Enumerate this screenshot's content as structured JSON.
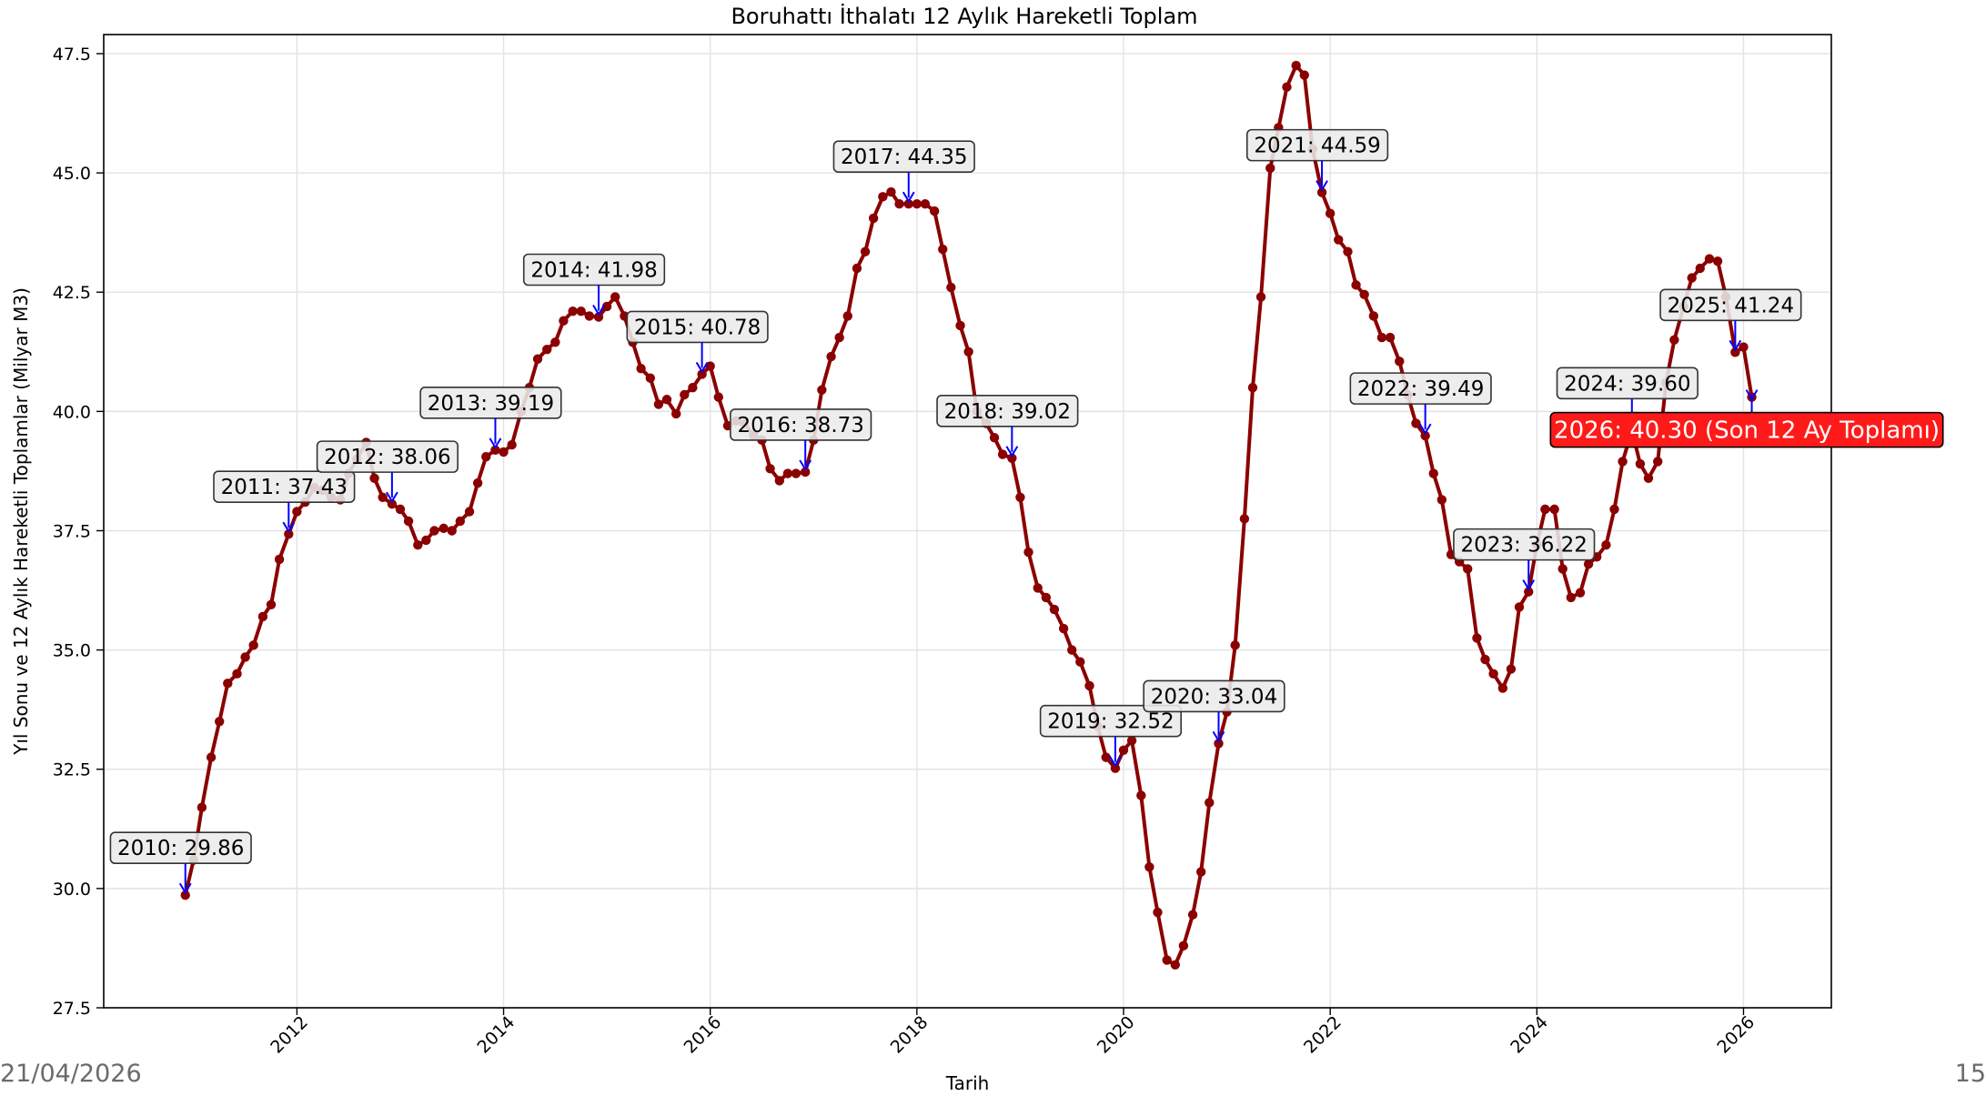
{
  "footer": {
    "date": "21/04/2026",
    "page": "15"
  },
  "chart_data": {
    "type": "line",
    "title": "Boruhattı İthalatı 12 Aylık Hareketli Toplam",
    "xlabel": "Tarih",
    "ylabel": "Yıl Sonu ve 12 Aylık Hareketli Toplamlar (Milyar M3)",
    "xlim": [
      2010.13,
      2026.85
    ],
    "ylim": [
      27.5,
      47.9
    ],
    "grid": true,
    "x_ticks": [
      2012,
      2014,
      2016,
      2018,
      2020,
      2022,
      2024,
      2026
    ],
    "x_tick_labels": [
      "2012",
      "2014",
      "2016",
      "2018",
      "2020",
      "2022",
      "2024",
      "2026"
    ],
    "y_ticks": [
      27.5,
      30.0,
      32.5,
      35.0,
      37.5,
      40.0,
      42.5,
      45.0,
      47.5
    ],
    "y_tick_labels": [
      "27.5",
      "30.0",
      "32.5",
      "35.0",
      "37.5",
      "40.0",
      "42.5",
      "45.0",
      "47.5"
    ],
    "line_color": "#8b0000",
    "arrow_color": "#0000ff",
    "highlight_color": "#ff1a1a",
    "series": [
      {
        "x": [
          2010.92,
          2011.0,
          2011.08,
          2011.17,
          2011.25,
          2011.33,
          2011.42,
          2011.5,
          2011.58,
          2011.67,
          2011.75,
          2011.83,
          2011.92,
          2012.0,
          2012.08,
          2012.17,
          2012.25,
          2012.33,
          2012.42,
          2012.5,
          2012.58,
          2012.67,
          2012.75,
          2012.83,
          2012.92,
          2013.0,
          2013.08,
          2013.17,
          2013.25,
          2013.33,
          2013.42,
          2013.5,
          2013.58,
          2013.67,
          2013.75,
          2013.83,
          2013.92,
          2014.0,
          2014.08,
          2014.17,
          2014.25,
          2014.33,
          2014.42,
          2014.5,
          2014.58,
          2014.67,
          2014.75,
          2014.83,
          2014.92,
          2015.0,
          2015.08,
          2015.17,
          2015.25,
          2015.33,
          2015.42,
          2015.5,
          2015.58,
          2015.67,
          2015.75,
          2015.83,
          2015.92,
          2016.0,
          2016.08,
          2016.17,
          2016.25,
          2016.33,
          2016.42,
          2016.5,
          2016.58,
          2016.67,
          2016.75,
          2016.83,
          2016.92,
          2017.0,
          2017.08,
          2017.17,
          2017.25,
          2017.33,
          2017.42,
          2017.5,
          2017.58,
          2017.67,
          2017.75,
          2017.83,
          2017.92,
          2018.0,
          2018.08,
          2018.17,
          2018.25,
          2018.33,
          2018.42,
          2018.5,
          2018.58,
          2018.67,
          2018.75,
          2018.83,
          2018.92,
          2019.0,
          2019.08,
          2019.17,
          2019.25,
          2019.33,
          2019.42,
          2019.5,
          2019.58,
          2019.67,
          2019.75,
          2019.83,
          2019.92,
          2020.0,
          2020.08,
          2020.17,
          2020.25,
          2020.33,
          2020.42,
          2020.5,
          2020.58,
          2020.67,
          2020.75,
          2020.83,
          2020.92,
          2021.0,
          2021.08,
          2021.17,
          2021.25,
          2021.33,
          2021.42,
          2021.5,
          2021.58,
          2021.67,
          2021.75,
          2021.83,
          2021.92,
          2022.0,
          2022.08,
          2022.17,
          2022.25,
          2022.33,
          2022.42,
          2022.5,
          2022.58,
          2022.67,
          2022.75,
          2022.83,
          2022.92,
          2023.0,
          2023.08,
          2023.17,
          2023.25,
          2023.33,
          2023.42,
          2023.5,
          2023.58,
          2023.67,
          2023.75,
          2023.83,
          2023.92,
          2024.0,
          2024.08,
          2024.17,
          2024.25,
          2024.33,
          2024.42,
          2024.5,
          2024.58,
          2024.67,
          2024.75,
          2024.83,
          2024.92,
          2025.0,
          2025.08,
          2025.17,
          2025.25,
          2025.33,
          2025.42,
          2025.5,
          2025.58,
          2025.67,
          2025.75,
          2025.83,
          2025.92,
          2026.0,
          2026.08
        ],
        "y": [
          29.86,
          30.6,
          31.7,
          32.75,
          33.5,
          34.3,
          34.5,
          34.85,
          35.1,
          35.7,
          35.95,
          36.9,
          37.43,
          37.9,
          38.1,
          38.4,
          38.35,
          38.2,
          38.15,
          38.7,
          39.0,
          39.35,
          38.6,
          38.2,
          38.06,
          37.95,
          37.7,
          37.2,
          37.3,
          37.5,
          37.55,
          37.5,
          37.7,
          37.9,
          38.5,
          39.05,
          39.19,
          39.15,
          39.3,
          40.0,
          40.5,
          41.1,
          41.3,
          41.45,
          41.9,
          42.1,
          42.1,
          42.0,
          41.98,
          42.2,
          42.4,
          42.0,
          41.45,
          40.9,
          40.7,
          40.15,
          40.25,
          39.95,
          40.35,
          40.5,
          40.78,
          40.95,
          40.3,
          39.7,
          39.8,
          39.75,
          39.5,
          39.4,
          38.8,
          38.55,
          38.7,
          38.7,
          38.73,
          39.4,
          40.45,
          41.15,
          41.55,
          42.0,
          43.0,
          43.35,
          44.05,
          44.5,
          44.6,
          44.35,
          44.35,
          44.35,
          44.35,
          44.2,
          43.4,
          42.6,
          41.8,
          41.25,
          40.0,
          39.75,
          39.45,
          39.1,
          39.02,
          38.2,
          37.05,
          36.3,
          36.1,
          35.85,
          35.45,
          35.0,
          34.75,
          34.25,
          33.4,
          32.75,
          32.52,
          32.9,
          33.1,
          31.95,
          30.45,
          29.5,
          28.5,
          28.4,
          28.8,
          29.45,
          30.35,
          31.8,
          33.04,
          33.7,
          35.1,
          37.75,
          40.5,
          42.4,
          45.1,
          45.95,
          46.8,
          47.25,
          47.05,
          45.5,
          44.59,
          44.15,
          43.6,
          43.35,
          42.65,
          42.45,
          42.0,
          41.55,
          41.55,
          41.05,
          40.35,
          39.75,
          39.49,
          38.7,
          38.15,
          37.0,
          36.85,
          36.7,
          35.25,
          34.8,
          34.5,
          34.2,
          34.6,
          35.9,
          36.22,
          37.2,
          37.95,
          37.95,
          36.7,
          36.1,
          36.2,
          36.8,
          36.95,
          37.2,
          37.95,
          38.95,
          39.6,
          38.9,
          38.6,
          38.95,
          40.6,
          41.5,
          42.2,
          42.8,
          43.0,
          43.2,
          43.15,
          42.4,
          41.24,
          41.35,
          40.3
        ]
      }
    ],
    "annotations": [
      {
        "label": "2010: 29.86",
        "x": 2010.92,
        "y": 29.86
      },
      {
        "label": "2011: 37.43",
        "x": 2011.92,
        "y": 37.43
      },
      {
        "label": "2012: 38.06",
        "x": 2012.92,
        "y": 38.06
      },
      {
        "label": "2013: 39.19",
        "x": 2013.92,
        "y": 39.19
      },
      {
        "label": "2014: 41.98",
        "x": 2014.92,
        "y": 41.98
      },
      {
        "label": "2015: 40.78",
        "x": 2015.92,
        "y": 40.78
      },
      {
        "label": "2016: 38.73",
        "x": 2016.92,
        "y": 38.73
      },
      {
        "label": "2017: 44.35",
        "x": 2017.92,
        "y": 44.35
      },
      {
        "label": "2018: 39.02",
        "x": 2018.92,
        "y": 39.02
      },
      {
        "label": "2019: 32.52",
        "x": 2019.92,
        "y": 32.52
      },
      {
        "label": "2020: 33.04",
        "x": 2020.92,
        "y": 33.04
      },
      {
        "label": "2021: 44.59",
        "x": 2021.92,
        "y": 44.59
      },
      {
        "label": "2022: 39.49",
        "x": 2022.92,
        "y": 39.49
      },
      {
        "label": "2023: 36.22",
        "x": 2023.92,
        "y": 36.22
      },
      {
        "label": "2024: 39.60",
        "x": 2024.92,
        "y": 39.6
      },
      {
        "label": "2025: 41.24",
        "x": 2025.92,
        "y": 41.24
      }
    ],
    "highlight_annotation": {
      "label": "2026: 40.30 (Son 12 Ay Toplamı)",
      "x": 2026.08,
      "y": 40.3
    }
  }
}
